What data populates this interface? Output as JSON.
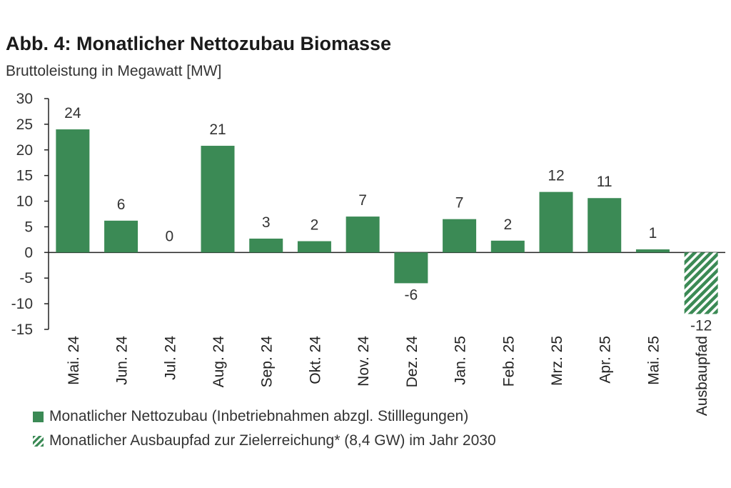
{
  "chart_data": {
    "type": "bar",
    "title": "Abb. 4: Monatlicher Nettozubau Biomasse",
    "subtitle": "Bruttoleistung in Megawatt [MW]",
    "categories": [
      "Mai. 24",
      "Jun. 24",
      "Jul. 24",
      "Aug. 24",
      "Sep. 24",
      "Okt. 24",
      "Nov. 24",
      "Dez. 24",
      "Jan. 25",
      "Feb. 25",
      "Mrz. 25",
      "Apr. 25",
      "Mai. 25",
      "Ausbaupfad"
    ],
    "values": [
      24,
      6.2,
      0,
      20.8,
      2.7,
      2.2,
      7,
      -6,
      6.5,
      2.3,
      11.8,
      10.6,
      0.6,
      -12
    ],
    "data_labels": [
      "24",
      "6",
      "0",
      "21",
      "3",
      "2",
      "7",
      "-6",
      "7",
      "2",
      "12",
      "11",
      "1",
      "-12"
    ],
    "series": [
      {
        "name": "Monatlicher Nettozubau (Inbetriebnahmen abzgl. Stilllegungen)",
        "style": "solid",
        "categories_index": [
          0,
          1,
          2,
          3,
          4,
          5,
          6,
          7,
          8,
          9,
          10,
          11,
          12
        ]
      },
      {
        "name": "Monatlicher Ausbaupfad zur Zielerreichung* (8,4 GW) im Jahr 2030",
        "style": "hatched",
        "categories_index": [
          13
        ]
      }
    ],
    "ylim": [
      -15,
      30
    ],
    "yticks": [
      "30",
      "25",
      "20",
      "15",
      "10",
      "5",
      "0",
      "-5",
      "-10",
      "-15"
    ],
    "ytick_values": [
      30,
      25,
      20,
      15,
      10,
      5,
      0,
      -5,
      -10,
      -15
    ],
    "xlabel": "",
    "ylabel": "",
    "grid": false,
    "legend_position": "bottom",
    "colors": {
      "bar": "#3b8a55",
      "axis": "#222222"
    }
  }
}
